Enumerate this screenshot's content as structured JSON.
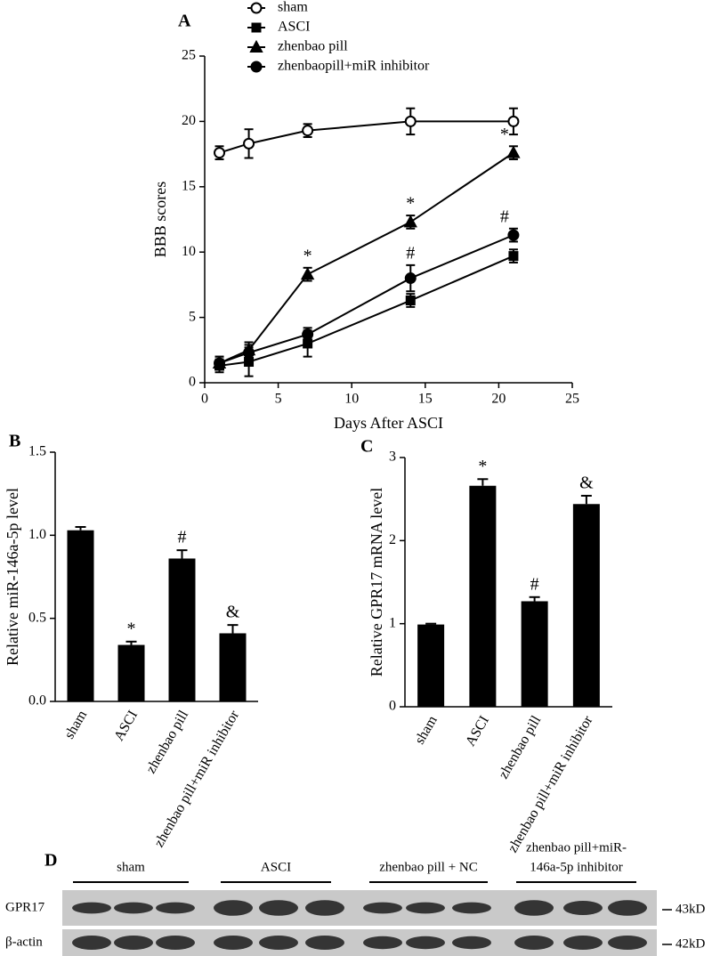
{
  "chart_data": [
    {
      "type": "line",
      "panel": "A",
      "xlabel": "Days After ASCI",
      "ylabel": "BBB scores",
      "x": [
        1,
        3,
        7,
        14,
        21
      ],
      "xlim": [
        0,
        25
      ],
      "xticks": [
        0,
        5,
        10,
        15,
        20,
        25
      ],
      "ylim": [
        0,
        25
      ],
      "yticks": [
        0,
        5,
        10,
        15,
        20,
        25
      ],
      "grid": false,
      "legend": "top",
      "series": [
        {
          "name": "sham",
          "color": "#000000",
          "marker": "circle-open",
          "values": [
            17.6,
            18.3,
            19.3,
            20,
            20
          ],
          "errors": [
            0.5,
            1.1,
            0.5,
            1.0,
            1.0
          ],
          "point_labels": [
            null,
            null,
            null,
            null,
            null
          ]
        },
        {
          "name": "ASCI",
          "color": "#000000",
          "marker": "square",
          "values": [
            1.3,
            1.6,
            3.0,
            6.3,
            9.7
          ],
          "errors": [
            0.5,
            1.1,
            1.0,
            0.5,
            0.5
          ],
          "point_labels": [
            null,
            null,
            null,
            null,
            null
          ]
        },
        {
          "name": "zhenbao pill",
          "color": "#000000",
          "marker": "triangle",
          "values": [
            1.5,
            2.5,
            8.3,
            12.3,
            17.6
          ],
          "errors": [
            0.5,
            0.6,
            0.5,
            0.5,
            0.5
          ],
          "point_labels": [
            null,
            null,
            "*",
            "*",
            "*"
          ]
        },
        {
          "name": "zhenbaopill+miR inhibitor",
          "color": "#000000",
          "marker": "circle",
          "values": [
            1.5,
            2.3,
            3.7,
            8.0,
            11.3
          ],
          "errors": [
            0.5,
            0.6,
            0.5,
            1.0,
            0.5
          ],
          "point_labels": [
            null,
            null,
            null,
            "#",
            "#"
          ]
        }
      ]
    },
    {
      "type": "bar",
      "panel": "B",
      "ylabel": "Relative miR-146a-5p level",
      "categories": [
        "sham",
        "ASCI",
        "zhenbao pill",
        "zhenbao pill+miR inhibitor"
      ],
      "values": [
        1.03,
        0.34,
        0.86,
        0.41
      ],
      "errors": [
        0.02,
        0.02,
        0.05,
        0.05
      ],
      "point_labels": [
        null,
        "*",
        "#",
        "&"
      ],
      "color": "#000000",
      "ylim": [
        0,
        1.5
      ],
      "yticks": [
        {
          "value": 0,
          "label": "0.0"
        },
        0.5,
        {
          "value": 1,
          "label": "1.0"
        },
        1.5
      ],
      "grid": false
    },
    {
      "type": "bar",
      "panel": "C",
      "ylabel": "Relative GPR17 mRNA level",
      "categories": [
        "sham",
        "ASCI",
        "zhenbao pill",
        "zhenbao pill+miR inhibitor"
      ],
      "values": [
        0.99,
        2.66,
        1.27,
        2.44
      ],
      "errors": [
        0.01,
        0.08,
        0.05,
        0.1
      ],
      "point_labels": [
        null,
        "*",
        "#",
        "&"
      ],
      "color": "#000000",
      "ylim": [
        0,
        3
      ],
      "yticks": [
        0,
        1,
        2,
        3
      ],
      "grid": false
    }
  ],
  "blot": {
    "panel": "D",
    "groups": [
      [
        "sham"
      ],
      [
        "ASCI"
      ],
      [
        "zhenbao pill + NC"
      ],
      [
        "zhenbao pill+miR-",
        "146a-5p inhibitor"
      ]
    ],
    "rows": [
      {
        "name": "GPR17",
        "size": "43kD"
      },
      {
        "name": "β-actin",
        "size": "42kD"
      }
    ]
  }
}
